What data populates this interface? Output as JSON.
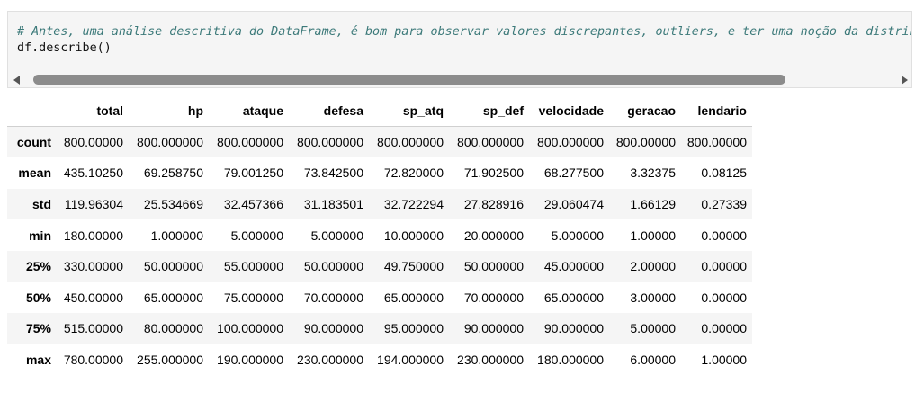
{
  "code_cell": {
    "comment_line": "# Antes, uma análise descritiva do DataFrame, é bom para observar valores discrepantes, outliers, e ter uma noção da distribuição dos dados",
    "code_line": "df.describe()"
  },
  "dataframe": {
    "columns": [
      "",
      "total",
      "hp",
      "ataque",
      "defesa",
      "sp_atq",
      "sp_def",
      "velocidade",
      "geracao",
      "lendario"
    ],
    "rows": [
      [
        "count",
        "800.00000",
        "800.000000",
        "800.000000",
        "800.000000",
        "800.000000",
        "800.000000",
        "800.000000",
        "800.00000",
        "800.00000"
      ],
      [
        "mean",
        "435.10250",
        "69.258750",
        "79.001250",
        "73.842500",
        "72.820000",
        "71.902500",
        "68.277500",
        "3.32375",
        "0.08125"
      ],
      [
        "std",
        "119.96304",
        "25.534669",
        "32.457366",
        "31.183501",
        "32.722294",
        "27.828916",
        "29.060474",
        "1.66129",
        "0.27339"
      ],
      [
        "min",
        "180.00000",
        "1.000000",
        "5.000000",
        "5.000000",
        "10.000000",
        "20.000000",
        "5.000000",
        "1.00000",
        "0.00000"
      ],
      [
        "25%",
        "330.00000",
        "50.000000",
        "55.000000",
        "50.000000",
        "49.750000",
        "50.000000",
        "45.000000",
        "2.00000",
        "0.00000"
      ],
      [
        "50%",
        "450.00000",
        "65.000000",
        "75.000000",
        "70.000000",
        "65.000000",
        "70.000000",
        "65.000000",
        "3.00000",
        "0.00000"
      ],
      [
        "75%",
        "515.00000",
        "80.000000",
        "100.000000",
        "90.000000",
        "95.000000",
        "90.000000",
        "90.000000",
        "5.00000",
        "0.00000"
      ],
      [
        "max",
        "780.00000",
        "255.000000",
        "190.000000",
        "230.000000",
        "194.000000",
        "230.000000",
        "180.000000",
        "6.00000",
        "1.00000"
      ]
    ]
  },
  "icons": {
    "scroll_left": "triangle-left-icon",
    "scroll_right": "triangle-right-icon"
  }
}
